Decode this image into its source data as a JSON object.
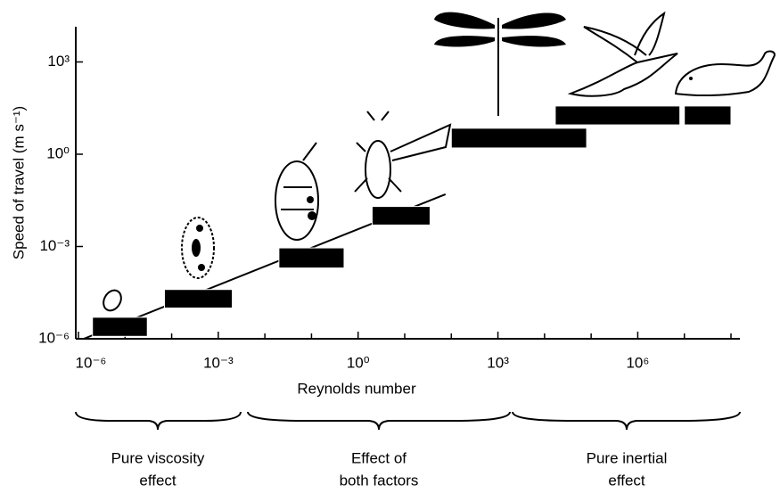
{
  "chart_data": {
    "type": "range_bar",
    "x_label": "Reynolds number",
    "y_label": "Speed of travel (m s⁻¹)",
    "log_x": true,
    "log_y": true,
    "xlim": [
      1e-06,
      100000000.0
    ],
    "ylim": [
      1e-06,
      10000.0
    ],
    "xticks": [
      {
        "value": 1e-06,
        "label": "10⁻⁶"
      },
      {
        "value": 0.001,
        "label": "10⁻³"
      },
      {
        "value": 1,
        "label": "10⁰"
      },
      {
        "value": 1000,
        "label": "10³"
      },
      {
        "value": 1000000.0,
        "label": "10⁶"
      }
    ],
    "xminorticks": [
      1e-05,
      0.0001,
      0.01,
      0.1,
      10,
      100,
      10000.0,
      100000.0,
      10000000.0,
      100000000.0
    ],
    "yticks": [
      {
        "value": 1e-06,
        "label": "10⁻⁶"
      },
      {
        "value": 0.001,
        "label": "10⁻³"
      },
      {
        "value": 1,
        "label": "10⁰"
      },
      {
        "value": 1000,
        "label": "10³"
      }
    ],
    "color": "#000000",
    "bars": [
      {
        "x": [
          2e-06,
          3e-05
        ],
        "y": [
          1.2e-06,
          5e-06
        ]
      },
      {
        "x": [
          7e-05,
          0.002
        ],
        "y": [
          1e-05,
          4e-05
        ]
      },
      {
        "x": [
          0.02,
          0.5
        ],
        "y": [
          0.0002,
          0.0009
        ]
      },
      {
        "x": [
          2,
          35
        ],
        "y": [
          0.005,
          0.02
        ]
      },
      {
        "x": [
          100,
          80000.0
        ],
        "y": [
          1.6,
          7
        ]
      },
      {
        "x": [
          17000.0,
          8000000.0
        ],
        "y": [
          9,
          37
        ]
      },
      {
        "x": [
          10000000.0,
          100000000.0
        ],
        "y": [
          9,
          37
        ]
      }
    ],
    "trend": {
      "x": [
        1.3e-06,
        75
      ],
      "y": [
        1e-06,
        0.05
      ]
    },
    "regions": [
      {
        "lines": [
          "Pure viscosity",
          "effect"
        ]
      },
      {
        "lines": [
          "Effect of",
          "both factors"
        ]
      },
      {
        "lines": [
          "Pure inertial",
          "effect"
        ]
      }
    ]
  }
}
